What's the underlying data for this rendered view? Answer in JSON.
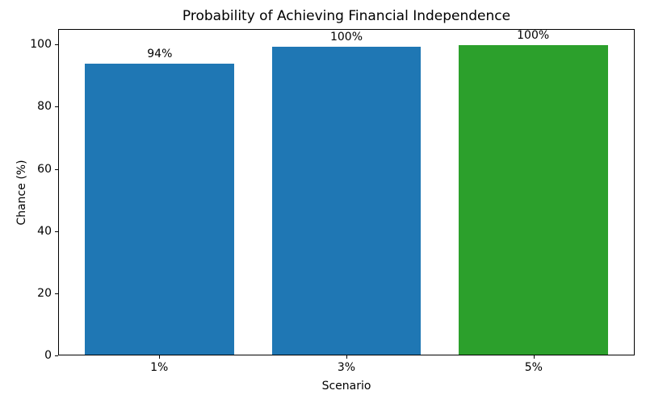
{
  "chart_data": {
    "type": "bar",
    "title": "Probability of Achieving Financial Independence",
    "xlabel": "Scenario",
    "ylabel": "Chance (%)",
    "categories": [
      "1%",
      "3%",
      "5%"
    ],
    "values": [
      94,
      99.5,
      100
    ],
    "bar_labels": [
      "94%",
      "100%",
      "100%"
    ],
    "bar_colors": [
      "#1f77b4",
      "#1f77b4",
      "#2ca02c"
    ],
    "ylim": [
      0,
      105
    ],
    "yticks": [
      0,
      20,
      40,
      60,
      80,
      100
    ],
    "grid": false,
    "legend_position": "none"
  },
  "colors": {
    "background": "#ffffff",
    "spine": "#000000",
    "text": "#000000"
  }
}
